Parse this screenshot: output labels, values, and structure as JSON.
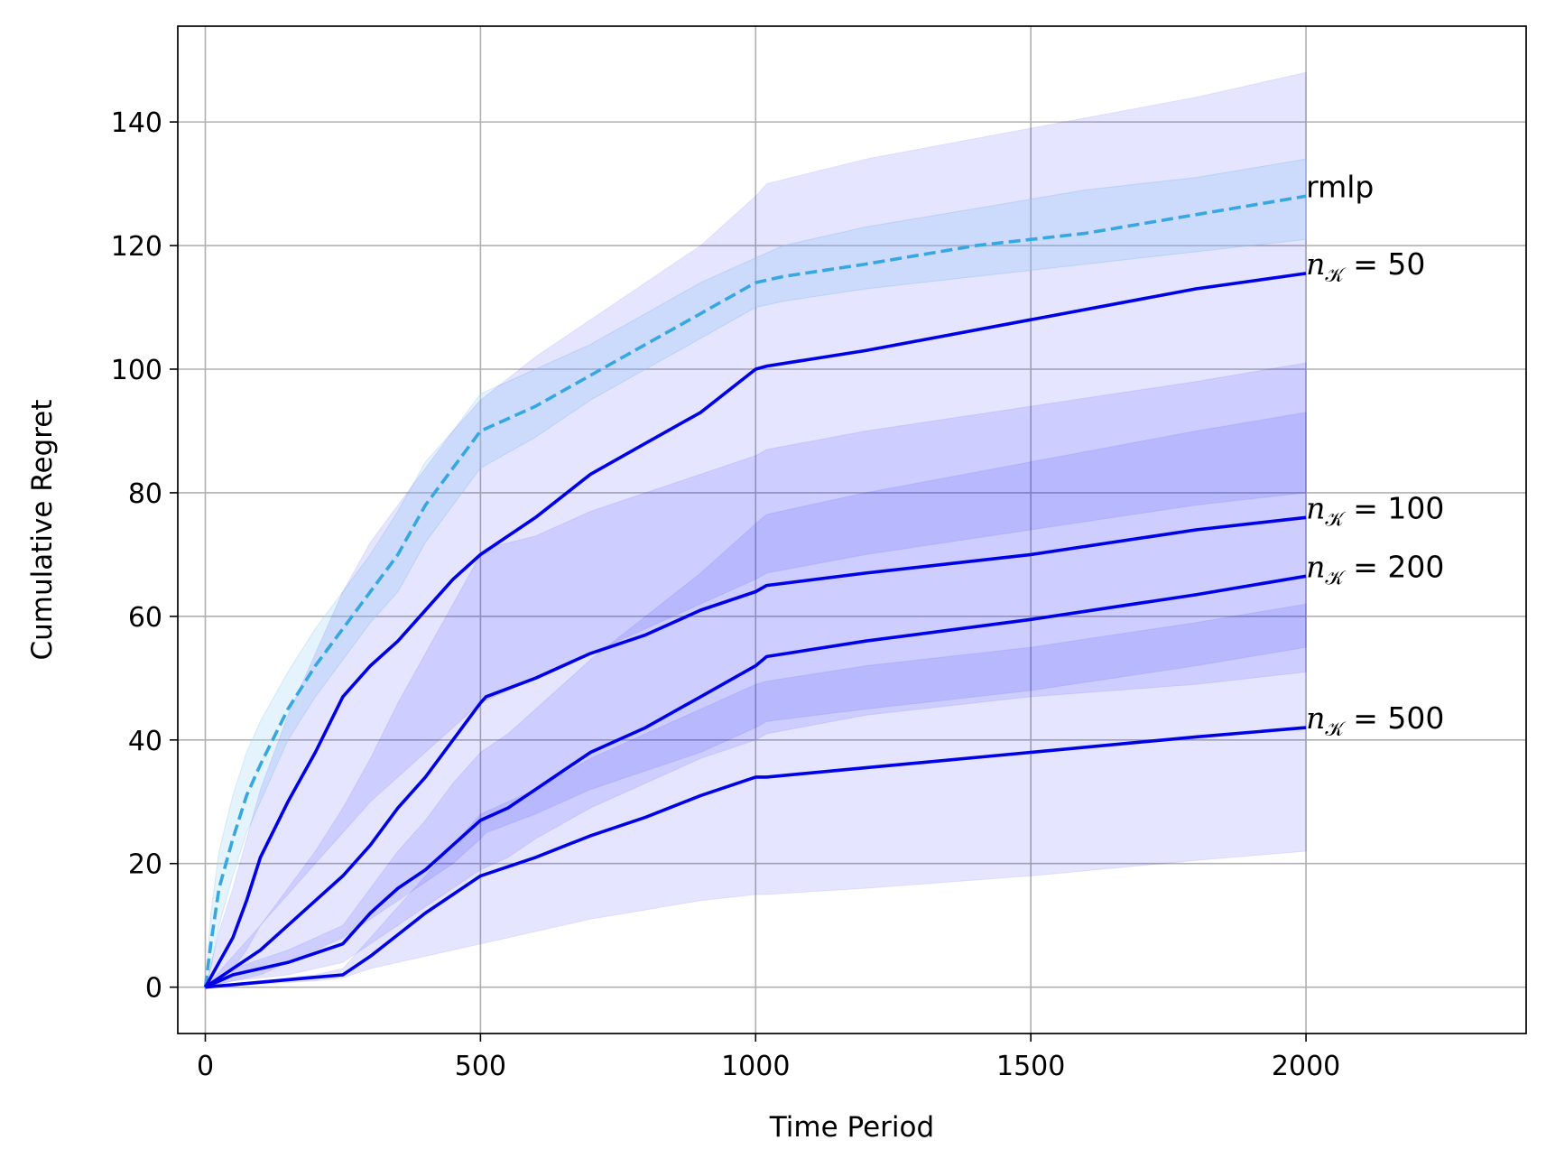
{
  "chart_data": {
    "type": "line",
    "title": "",
    "xlabel": "Time Period",
    "ylabel": "Cumulative Regret",
    "xlim": [
      -50,
      2400
    ],
    "ylim": [
      -7.5,
      155.5
    ],
    "xticks": [
      0,
      500,
      1000,
      1500,
      2000
    ],
    "yticks": [
      0,
      20,
      40,
      60,
      80,
      100,
      120,
      140
    ],
    "grid": true,
    "legend": "none (inline labels at line ends)",
    "series": [
      {
        "name": "rmlp",
        "color": "#36a7e0",
        "style": "dashed",
        "x": [
          0,
          10,
          25,
          50,
          75,
          100,
          150,
          200,
          250,
          300,
          350,
          400,
          450,
          500,
          600,
          700,
          800,
          900,
          1000,
          1050,
          1200,
          1400,
          1600,
          1800,
          2000
        ],
        "y": [
          0,
          7,
          16,
          24,
          31,
          36,
          45,
          52,
          58,
          64,
          70,
          78,
          84,
          90,
          94,
          99,
          104,
          109,
          114,
          115,
          117,
          120,
          122,
          125,
          128
        ],
        "band_lower": [
          0,
          3,
          10,
          18,
          25,
          30,
          40,
          47,
          53,
          59,
          64,
          72,
          78,
          84,
          89,
          95,
          100,
          105,
          110,
          111,
          113,
          115,
          117,
          119,
          121
        ],
        "band_upper": [
          0,
          12,
          22,
          31,
          38,
          43,
          51,
          58,
          64,
          70,
          77,
          85,
          90,
          96,
          100,
          104,
          109,
          114,
          118,
          120,
          123,
          126,
          129,
          131,
          134
        ]
      },
      {
        "name": "50",
        "label_prefix": "n",
        "label_subscript": "𝒦",
        "color": "#0000e6",
        "style": "solid",
        "x": [
          0,
          25,
          50,
          75,
          100,
          150,
          200,
          250,
          300,
          350,
          400,
          450,
          500,
          600,
          700,
          800,
          900,
          1000,
          1020,
          1200,
          1500,
          1800,
          2000
        ],
        "y": [
          0,
          4,
          8,
          14,
          21,
          30,
          38,
          47,
          52,
          56,
          61,
          66,
          70,
          76,
          83,
          88,
          93,
          100,
          100.5,
          103,
          108,
          113,
          115.5
        ],
        "band_lower": [
          0,
          1,
          3,
          6,
          10,
          15,
          20,
          25,
          30,
          34,
          38,
          42,
          46,
          50,
          54,
          58,
          62,
          66,
          67,
          70,
          74,
          78,
          80
        ],
        "band_upper": [
          0,
          9,
          16,
          24,
          32,
          44,
          54,
          64,
          72,
          78,
          84,
          90,
          95,
          102,
          108,
          114,
          120,
          128,
          130,
          134,
          139,
          144,
          148
        ]
      },
      {
        "name": "100",
        "label_prefix": "n",
        "label_subscript": "𝒦",
        "color": "#0000e6",
        "style": "solid",
        "x": [
          0,
          50,
          100,
          150,
          200,
          250,
          300,
          350,
          400,
          450,
          500,
          510,
          600,
          700,
          800,
          900,
          1000,
          1020,
          1200,
          1500,
          1800,
          2000
        ],
        "y": [
          0,
          3,
          6,
          10,
          14,
          18,
          23,
          29,
          34,
          40,
          46,
          47,
          50,
          54,
          57,
          61,
          64,
          65,
          67,
          70,
          74,
          76
        ],
        "band_lower": [
          0,
          1,
          2,
          4,
          6,
          8,
          11,
          14,
          17,
          20,
          24,
          25,
          28,
          32,
          35,
          38,
          42,
          43,
          45,
          48,
          52,
          55
        ],
        "band_upper": [
          0,
          5,
          10,
          16,
          22,
          29,
          37,
          46,
          54,
          62,
          70,
          71,
          73,
          77,
          80,
          83,
          86,
          87,
          90,
          94,
          98,
          101
        ]
      },
      {
        "name": "200",
        "label_prefix": "n",
        "label_subscript": "𝒦",
        "color": "#0000e6",
        "style": "solid",
        "x": [
          0,
          50,
          100,
          150,
          200,
          250,
          300,
          350,
          400,
          450,
          500,
          550,
          600,
          700,
          800,
          900,
          1000,
          1020,
          1200,
          1500,
          1800,
          2000
        ],
        "y": [
          0,
          2,
          3,
          4,
          5.5,
          7,
          12,
          16,
          19,
          23,
          27,
          29,
          32,
          38,
          42,
          47,
          52,
          53.5,
          56,
          59.5,
          63.5,
          66.5
        ],
        "band_lower": [
          0,
          1,
          1.5,
          2,
          3,
          4,
          7,
          10,
          13,
          16,
          19,
          21,
          24,
          29,
          33,
          37,
          40,
          41,
          44,
          47,
          49,
          51
        ],
        "band_upper": [
          0,
          3,
          4.5,
          6,
          8,
          10,
          16,
          22,
          27,
          33,
          38,
          41,
          45,
          53,
          60,
          67,
          75,
          76.5,
          80,
          85,
          90,
          93
        ]
      },
      {
        "name": "500",
        "label_prefix": "n",
        "label_subscript": "𝒦",
        "color": "#0000e6",
        "style": "solid",
        "x": [
          0,
          100,
          200,
          250,
          300,
          350,
          400,
          450,
          500,
          600,
          700,
          800,
          900,
          1000,
          1020,
          1200,
          1500,
          1800,
          2000
        ],
        "y": [
          0,
          0.8,
          1.6,
          2,
          5,
          8.5,
          12,
          15,
          18,
          21,
          24.5,
          27.5,
          31,
          34,
          34,
          35.5,
          38,
          40.5,
          42
        ],
        "band_lower": [
          0,
          0.5,
          1,
          1.5,
          3,
          4,
          5,
          6,
          7,
          9,
          11,
          12.5,
          14,
          15,
          15,
          16,
          18,
          20.5,
          22
        ],
        "band_upper": [
          0,
          1,
          2,
          3,
          8,
          13,
          18,
          23,
          28,
          32,
          37,
          41,
          45,
          49,
          49.5,
          52,
          55,
          59,
          62
        ]
      }
    ]
  }
}
